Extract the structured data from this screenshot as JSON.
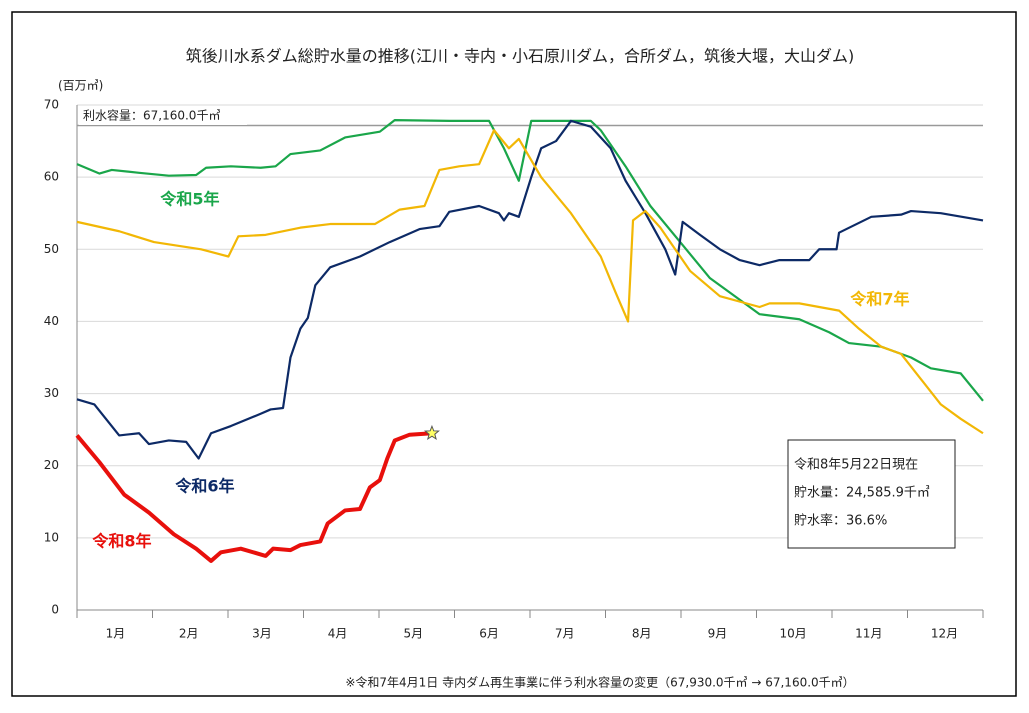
{
  "chart_data": {
    "type": "line",
    "title": "筑後川水系ダム総貯水量の推移(江川・寺内・小石原川ダム，合所ダム，筑後大堰，大山ダム)",
    "y_label": "(百万㎥)",
    "capacity": {
      "label": "利水容量：67,160.0千㎥",
      "value": 67.16
    },
    "info": [
      "令和8年5月22日現在",
      "貯水量：24,585.9千㎥",
      "貯水率：36.6%"
    ],
    "footnote": "※令和7年4月1日 寺内ダム再生事業に伴う利水容量の変更（67,930.0千㎥ → 67,160.0千㎥）",
    "xlim": [
      0,
      365
    ],
    "xticks": [
      {
        "value": 15.5,
        "label": "1月"
      },
      {
        "value": 45,
        "label": "2月"
      },
      {
        "value": 74.5,
        "label": "3月"
      },
      {
        "value": 105,
        "label": "4月"
      },
      {
        "value": 135.5,
        "label": "5月"
      },
      {
        "value": 166,
        "label": "6月"
      },
      {
        "value": 196.5,
        "label": "7月"
      },
      {
        "value": 227.5,
        "label": "8月"
      },
      {
        "value": 258,
        "label": "9月"
      },
      {
        "value": 288.5,
        "label": "10月"
      },
      {
        "value": 319,
        "label": "11月"
      },
      {
        "value": 349.5,
        "label": "12月"
      }
    ],
    "ylim": [
      0,
      70
    ],
    "yticks": [
      0,
      10,
      20,
      30,
      40,
      50,
      60,
      70
    ],
    "grid": true,
    "series": [
      {
        "name": "令和5年",
        "color": "#1aa64a",
        "x": [
          0,
          9,
          14,
          25,
          37,
          48,
          52,
          62,
          74,
          80,
          86,
          98,
          108,
          122,
          128,
          150,
          166,
          172,
          178,
          183,
          207,
          211,
          221,
          231,
          243,
          255,
          267,
          275,
          291,
          303,
          311,
          324,
          336,
          344,
          356,
          365
        ],
        "values": [
          61.8,
          60.5,
          61,
          60.6,
          60.2,
          60.3,
          61.3,
          61.5,
          61.3,
          61.5,
          63.2,
          63.7,
          65.5,
          66.3,
          67.9,
          67.8,
          67.8,
          64,
          59.5,
          67.8,
          67.8,
          66.5,
          61.5,
          56,
          51,
          46,
          43,
          41,
          40.3,
          38.5,
          37,
          36.5,
          35,
          33.5,
          32.8,
          29
        ]
      },
      {
        "name": "令和6年",
        "color": "#0d2a66",
        "x": [
          0,
          7,
          17,
          25,
          29,
          37,
          44,
          49,
          54,
          62,
          74,
          78,
          83,
          86,
          90,
          93,
          96,
          102,
          114,
          126,
          138,
          146,
          150,
          162,
          170,
          172,
          174,
          178,
          183,
          187,
          193,
          199,
          207,
          215,
          221,
          229,
          237,
          241,
          244,
          251,
          259,
          267,
          275,
          283,
          295,
          299,
          306,
          307,
          320,
          332,
          336,
          348,
          365
        ],
        "values": [
          29.2,
          28.5,
          24.2,
          24.5,
          23,
          23.5,
          23.3,
          21,
          24.5,
          25.5,
          27.2,
          27.8,
          28,
          35,
          39,
          40.5,
          45,
          47.5,
          49,
          51,
          52.8,
          53.2,
          55.2,
          56,
          55,
          54,
          55,
          54.5,
          60,
          64,
          65,
          67.8,
          67,
          64,
          59.5,
          55,
          50,
          46.5,
          53.8,
          52,
          50,
          48.5,
          47.8,
          48.5,
          48.5,
          50,
          50,
          52.3,
          54.5,
          54.8,
          55.3,
          55,
          54
        ]
      },
      {
        "name": "令和7年",
        "color": "#f2b705",
        "x": [
          0,
          17,
          31,
          50,
          61,
          65,
          76,
          90,
          102,
          120,
          130,
          140,
          146,
          154,
          162,
          168,
          174,
          178,
          187,
          199,
          211,
          217,
          222,
          224,
          229,
          235,
          247,
          259,
          275,
          279,
          291,
          307,
          315,
          324,
          332,
          340,
          348,
          356,
          365
        ],
        "values": [
          53.8,
          52.5,
          51,
          50,
          49,
          51.8,
          52,
          53,
          53.5,
          53.5,
          55.5,
          56,
          61,
          61.5,
          61.8,
          66.5,
          64,
          65.3,
          60,
          55,
          49,
          44,
          40,
          54,
          55.3,
          53,
          47,
          43.5,
          42,
          42.5,
          42.5,
          41.5,
          39,
          36.5,
          35.5,
          32,
          28.5,
          26.5,
          24.5
        ]
      },
      {
        "name": "令和8年",
        "color": "#e8100c",
        "x": [
          0,
          9,
          19,
          29,
          39,
          48,
          54,
          58,
          66,
          76,
          79,
          86,
          90,
          98,
          101,
          108,
          114,
          118,
          122,
          125,
          128,
          134,
          143
        ],
        "values": [
          24.2,
          20.5,
          16,
          13.5,
          10.5,
          8.5,
          6.8,
          8,
          8.5,
          7.5,
          8.5,
          8.3,
          9,
          9.5,
          12,
          13.8,
          14,
          17,
          18,
          21,
          23.5,
          24.3,
          24.5
        ]
      }
    ]
  }
}
